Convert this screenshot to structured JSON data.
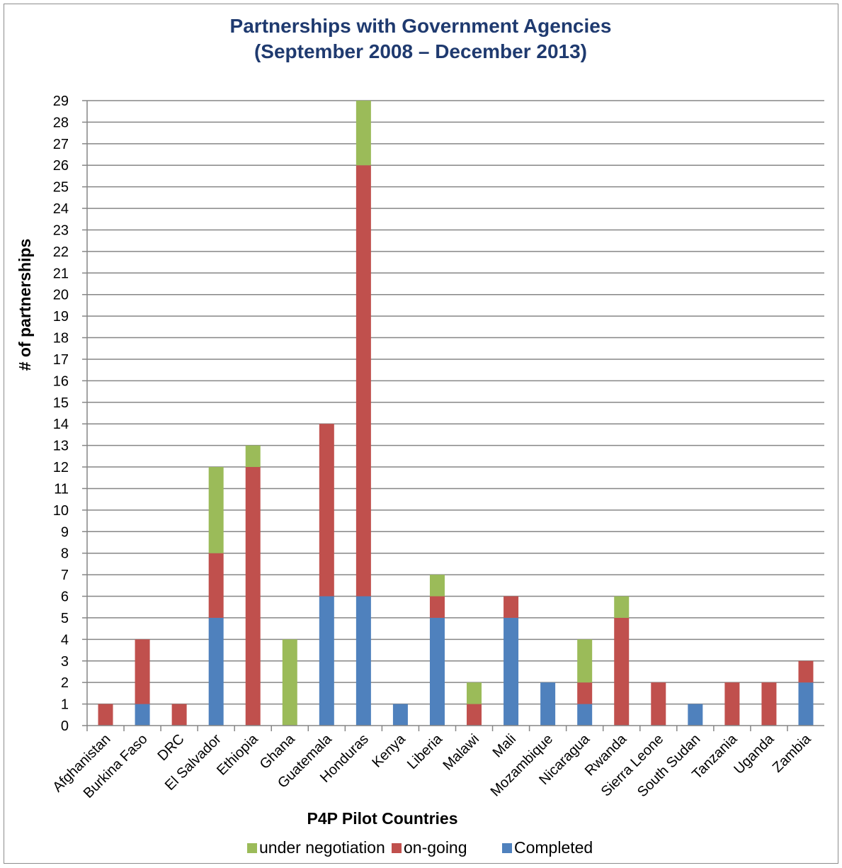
{
  "chart_data": {
    "type": "bar",
    "stacked": true,
    "title_line1": "Partnerships with Government Agencies",
    "title_line2": "(September 2008 – December 2013)",
    "xlabel": "P4P Pilot Countries",
    "ylabel": "# of partnerships",
    "ylim": [
      0,
      29
    ],
    "y_ticks": [
      0,
      1,
      2,
      3,
      4,
      5,
      6,
      7,
      8,
      9,
      10,
      11,
      12,
      13,
      14,
      15,
      16,
      17,
      18,
      19,
      20,
      21,
      22,
      23,
      24,
      25,
      26,
      27,
      28,
      29
    ],
    "grid": true,
    "legend_position": "bottom",
    "categories": [
      "Afghanistan",
      "Burkina Faso",
      "DRC",
      "El Salvador",
      "Ethiopia",
      "Ghana",
      "Guatemala",
      "Honduras",
      "Kenya",
      "Liberia",
      "Malawi",
      "Mali",
      "Mozambique",
      "Nicaragua",
      "Rwanda",
      "Sierra Leone",
      "South Sudan",
      "Tanzania",
      "Uganda",
      "Zambia"
    ],
    "series": [
      {
        "name": "Completed",
        "color": "#4f81bd",
        "values": [
          0,
          1,
          0,
          5,
          0,
          0,
          6,
          6,
          1,
          5,
          0,
          5,
          2,
          1,
          0,
          0,
          1,
          0,
          0,
          2
        ]
      },
      {
        "name": "on-going",
        "color": "#c0504d",
        "values": [
          1,
          3,
          1,
          3,
          12,
          0,
          8,
          20,
          0,
          1,
          1,
          1,
          0,
          1,
          5,
          2,
          0,
          2,
          2,
          1
        ]
      },
      {
        "name": "under negotiation",
        "color": "#9bbb59",
        "values": [
          0,
          0,
          0,
          4,
          1,
          4,
          0,
          3,
          0,
          1,
          1,
          0,
          0,
          2,
          1,
          0,
          0,
          0,
          0,
          0
        ]
      }
    ],
    "legend_order": [
      "under negotiation",
      "on-going",
      "Completed"
    ]
  }
}
